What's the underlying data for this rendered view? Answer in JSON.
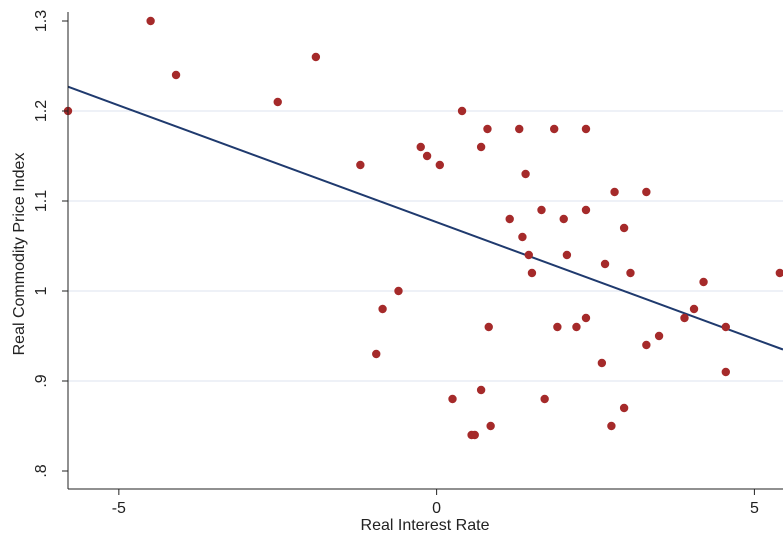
{
  "chart_data": {
    "type": "scatter",
    "xlabel": "Real Interest Rate",
    "ylabel": "Real Commodity Price Index",
    "xlim": [
      -5.8,
      5.45
    ],
    "ylim": [
      0.78,
      1.31
    ],
    "x_ticks": [
      -5,
      0,
      5
    ],
    "x_tick_labels": [
      "-5",
      "0",
      "5"
    ],
    "y_ticks": [
      0.8,
      0.9,
      1.0,
      1.1,
      1.2,
      1.3
    ],
    "y_tick_labels": [
      ".8",
      ".9",
      "1",
      "1.1",
      "1.2",
      "1.3"
    ],
    "grid": "horizontal",
    "legend": "none",
    "colors": {
      "points": "#a52a2a",
      "fit_line": "#1f3a6e",
      "grid": "#dde3ef",
      "axis": "#222222"
    },
    "series": [
      {
        "type": "scatter",
        "points": [
          [
            -5.8,
            1.2
          ],
          [
            -4.5,
            1.3
          ],
          [
            -4.1,
            1.24
          ],
          [
            -2.5,
            1.21
          ],
          [
            -1.9,
            1.26
          ],
          [
            -1.2,
            1.14
          ],
          [
            -0.95,
            0.93
          ],
          [
            -0.85,
            0.98
          ],
          [
            -0.6,
            1.0
          ],
          [
            -0.25,
            1.16
          ],
          [
            -0.15,
            1.15
          ],
          [
            0.05,
            1.14
          ],
          [
            0.25,
            0.88
          ],
          [
            0.4,
            1.2
          ],
          [
            0.55,
            0.84
          ],
          [
            0.6,
            0.84
          ],
          [
            0.7,
            1.16
          ],
          [
            0.7,
            0.89
          ],
          [
            0.8,
            1.18
          ],
          [
            0.82,
            0.96
          ],
          [
            0.85,
            0.85
          ],
          [
            1.15,
            1.08
          ],
          [
            1.3,
            1.18
          ],
          [
            1.35,
            1.06
          ],
          [
            1.4,
            1.13
          ],
          [
            1.45,
            1.04
          ],
          [
            1.5,
            1.02
          ],
          [
            1.65,
            1.09
          ],
          [
            1.7,
            0.88
          ],
          [
            1.85,
            1.18
          ],
          [
            1.9,
            0.96
          ],
          [
            2.0,
            1.08
          ],
          [
            2.05,
            1.04
          ],
          [
            2.2,
            0.96
          ],
          [
            2.35,
            1.18
          ],
          [
            2.35,
            1.09
          ],
          [
            2.35,
            0.97
          ],
          [
            2.6,
            0.92
          ],
          [
            2.65,
            1.03
          ],
          [
            2.75,
            0.85
          ],
          [
            2.8,
            1.11
          ],
          [
            2.95,
            1.07
          ],
          [
            2.95,
            0.87
          ],
          [
            3.05,
            1.02
          ],
          [
            3.3,
            1.11
          ],
          [
            3.3,
            0.94
          ],
          [
            3.5,
            0.95
          ],
          [
            3.9,
            0.97
          ],
          [
            4.05,
            0.98
          ],
          [
            4.2,
            1.01
          ],
          [
            4.55,
            0.96
          ],
          [
            4.55,
            0.91
          ],
          [
            5.4,
            1.02
          ]
        ]
      },
      {
        "type": "line",
        "name": "",
        "x": [
          -5.8,
          5.45
        ],
        "y": [
          1.227,
          0.935
        ]
      }
    ]
  }
}
